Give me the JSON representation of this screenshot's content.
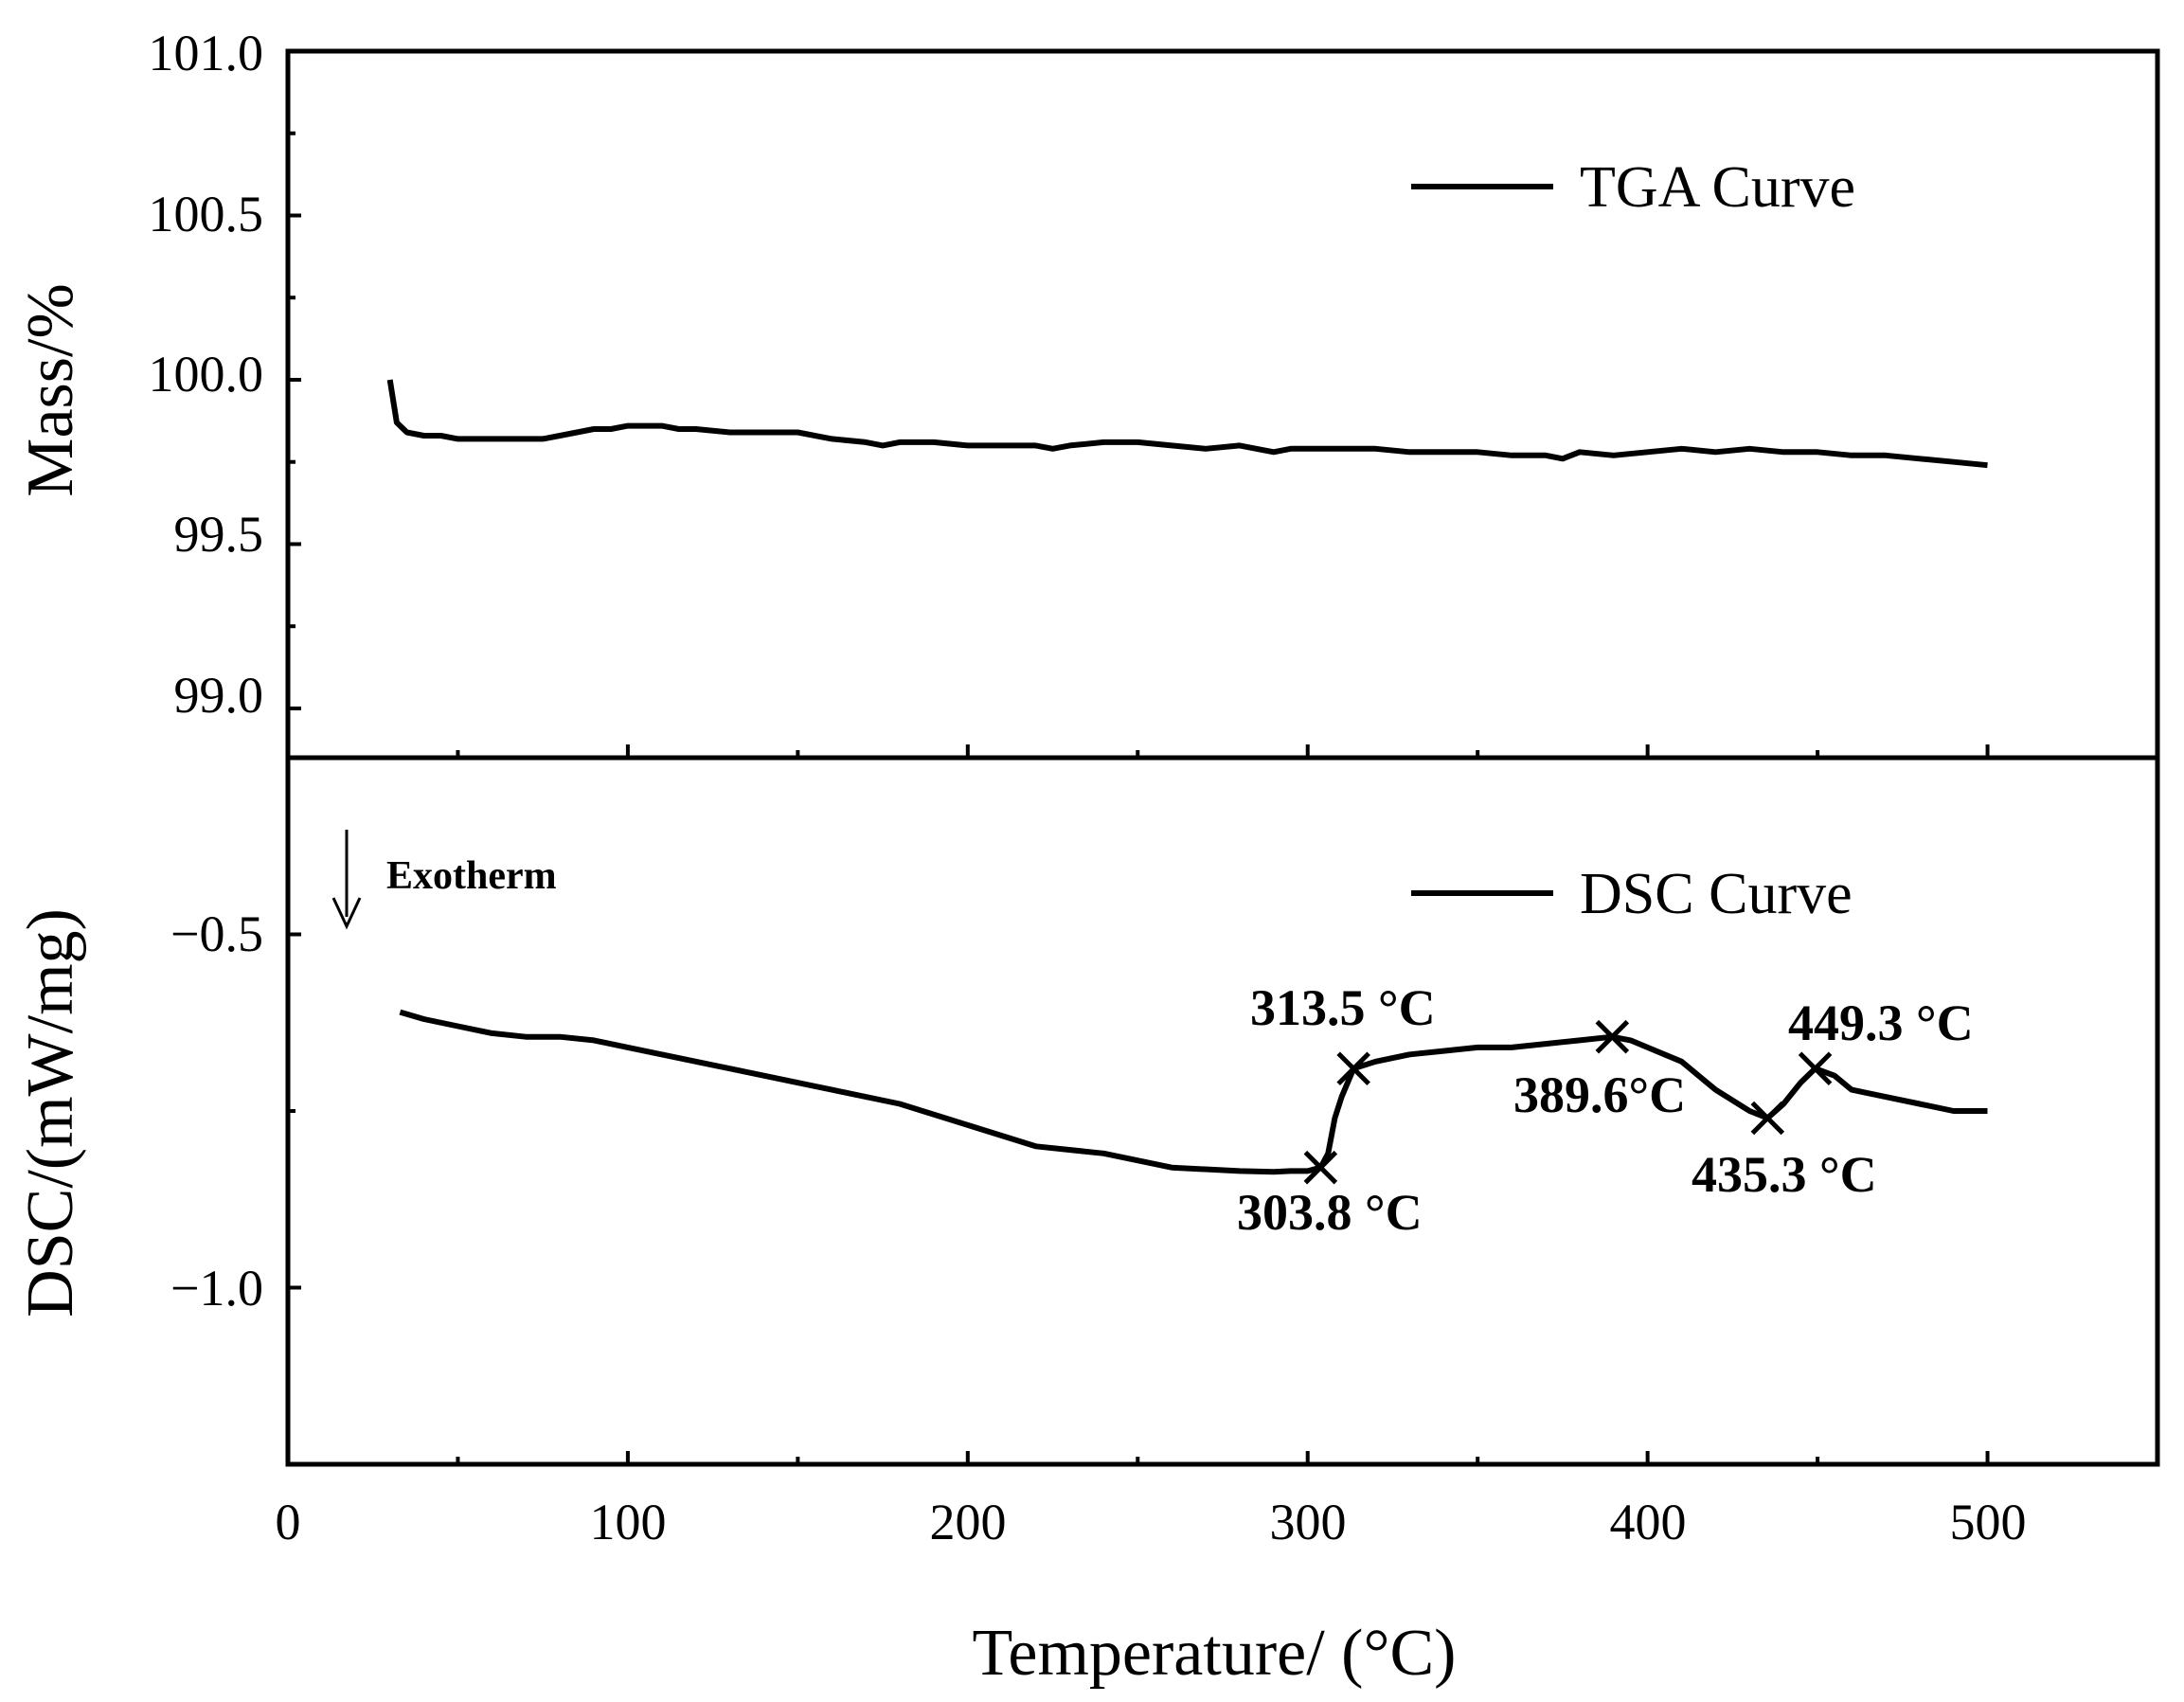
{
  "chart_data": [
    {
      "type": "line",
      "panel": "top",
      "series": [
        {
          "name": "TGA Curve",
          "x": [
            30,
            32,
            35,
            40,
            45,
            50,
            55,
            60,
            65,
            70,
            75,
            80,
            85,
            90,
            95,
            100,
            105,
            110,
            115,
            120,
            130,
            140,
            150,
            160,
            170,
            175,
            180,
            190,
            200,
            210,
            220,
            225,
            230,
            240,
            250,
            260,
            270,
            280,
            290,
            295,
            300,
            310,
            320,
            330,
            340,
            350,
            360,
            370,
            375,
            380,
            390,
            400,
            410,
            420,
            430,
            440,
            450,
            460,
            470,
            480,
            490,
            500
          ],
          "y": [
            100.0,
            99.87,
            99.84,
            99.83,
            99.83,
            99.82,
            99.82,
            99.82,
            99.82,
            99.82,
            99.82,
            99.83,
            99.84,
            99.85,
            99.85,
            99.86,
            99.86,
            99.86,
            99.85,
            99.85,
            99.84,
            99.84,
            99.84,
            99.82,
            99.81,
            99.8,
            99.81,
            99.81,
            99.8,
            99.8,
            99.8,
            99.79,
            99.8,
            99.81,
            99.81,
            99.8,
            99.79,
            99.8,
            99.78,
            99.79,
            99.79,
            99.79,
            99.79,
            99.78,
            99.78,
            99.78,
            99.77,
            99.77,
            99.76,
            99.78,
            99.77,
            99.78,
            99.79,
            99.78,
            99.79,
            99.78,
            99.78,
            99.77,
            99.77,
            99.76,
            99.75,
            99.74
          ]
        }
      ],
      "ylabel": "Mass/%",
      "ylim": [
        98.85,
        101.0
      ],
      "yticks": [
        "101.0",
        "100.5",
        "100.0",
        "99.5",
        "99.0"
      ],
      "xlim": [
        0,
        550
      ],
      "legend": "top-right"
    },
    {
      "type": "line",
      "panel": "bottom",
      "series": [
        {
          "name": "DSC Curve",
          "x": [
            33,
            40,
            50,
            60,
            70,
            80,
            90,
            100,
            120,
            140,
            160,
            180,
            200,
            220,
            240,
            260,
            280,
            290,
            295,
            300,
            303.8,
            306,
            308,
            310,
            313.5,
            320,
            330,
            340,
            350,
            360,
            370,
            380,
            389.6,
            395,
            400,
            410,
            420,
            430,
            435.3,
            440,
            445,
            449.3,
            455,
            460,
            470,
            480,
            490,
            500
          ],
          "y": [
            -0.61,
            -0.62,
            -0.63,
            -0.64,
            -0.645,
            -0.645,
            -0.65,
            -0.66,
            -0.68,
            -0.7,
            -0.72,
            -0.74,
            -0.77,
            -0.8,
            -0.81,
            -0.83,
            -0.835,
            -0.836,
            -0.835,
            -0.835,
            -0.83,
            -0.81,
            -0.76,
            -0.73,
            -0.69,
            -0.68,
            -0.67,
            -0.665,
            -0.66,
            -0.66,
            -0.655,
            -0.65,
            -0.645,
            -0.65,
            -0.66,
            -0.68,
            -0.72,
            -0.75,
            -0.76,
            -0.74,
            -0.71,
            -0.69,
            -0.7,
            -0.72,
            -0.73,
            -0.74,
            -0.75,
            -0.75
          ]
        }
      ],
      "markers": [
        {
          "x": 303.8,
          "y": -0.83,
          "label": "303.8 °C"
        },
        {
          "x": 313.5,
          "y": -0.69,
          "label": "313.5 °C"
        },
        {
          "x": 389.6,
          "y": -0.645,
          "label": "389.6°C"
        },
        {
          "x": 435.3,
          "y": -0.76,
          "label": "435.3 °C"
        },
        {
          "x": 449.3,
          "y": -0.69,
          "label": "449.3 °C"
        }
      ],
      "annotation": "Exotherm",
      "ylabel": "DSC/(mW/mg)",
      "ylim": [
        -1.25,
        -0.25
      ],
      "yticks": [
        "−0.5",
        "−1.0"
      ],
      "xlabel": "Temperature/ (°C)",
      "xlim": [
        0,
        550
      ],
      "xticks": [
        "0",
        "100",
        "200",
        "300",
        "400",
        "500"
      ],
      "legend": "top-right"
    }
  ],
  "colors": {
    "line": "#000000",
    "background": "#ffffff"
  }
}
